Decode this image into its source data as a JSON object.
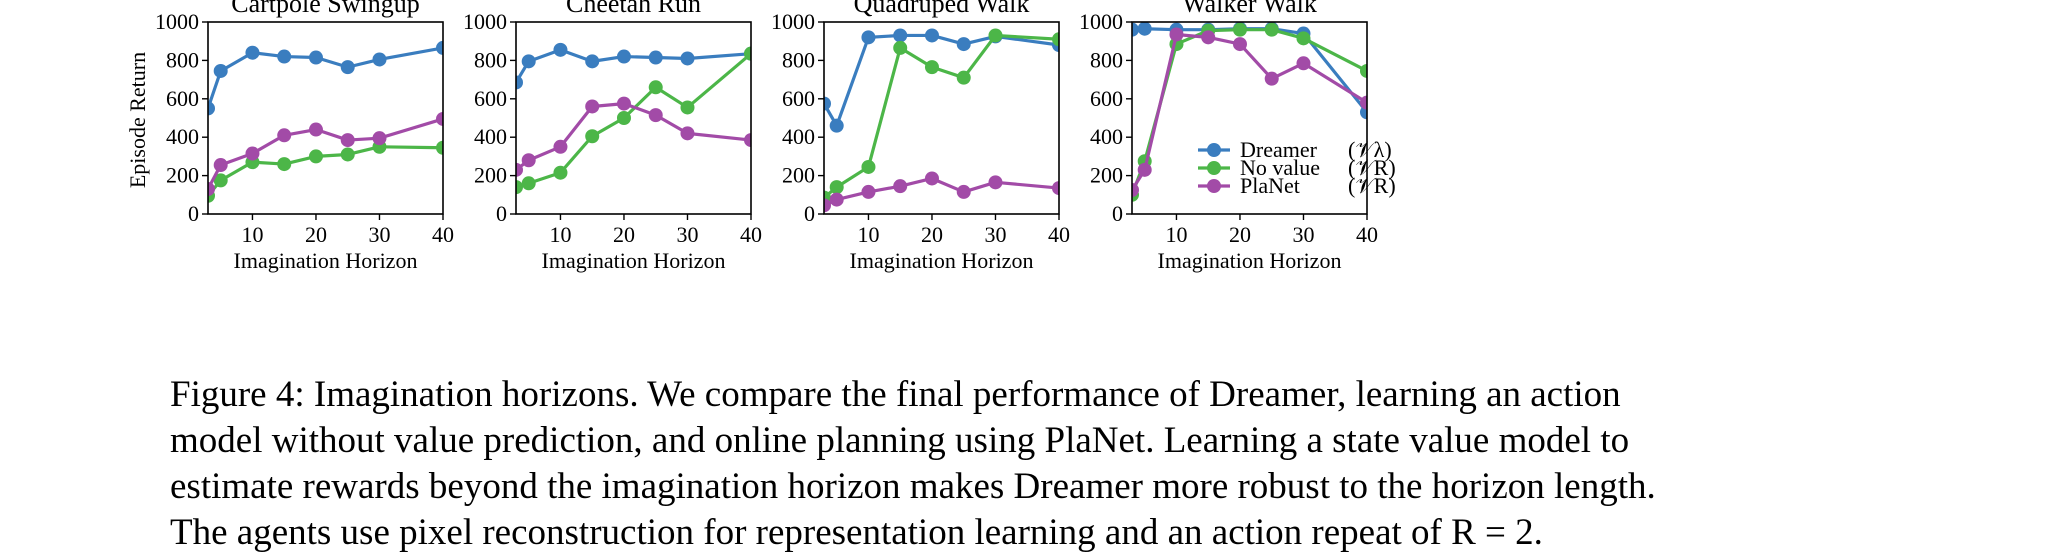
{
  "figure": {
    "series_colors": {
      "Dreamer": "#3a7dbf",
      "No value": "#4cb648",
      "PlaNet": "#a24ba7"
    },
    "legend": [
      {
        "series": "Dreamer",
        "label": "Dreamer",
        "subscript_label": "(𝒱λ)",
        "color": "#3a7dbf"
      },
      {
        "series": "No value",
        "label": "No value",
        "subscript_label": "(𝒱R)",
        "color": "#4cb648"
      },
      {
        "series": "PlaNet",
        "label": "PlaNet",
        "subscript_label": "(𝒱R)",
        "color": "#a24ba7"
      }
    ],
    "legend_placement": "lower-right of Walker Walk panel"
  },
  "chart_data": [
    {
      "type": "line",
      "title": "Cartpole Swingup",
      "xlabel": "Imagination Horizon",
      "ylabel": "Episode Return",
      "xlim": [
        3,
        40
      ],
      "ylim": [
        0,
        1000
      ],
      "xticks": [
        10,
        20,
        30,
        40
      ],
      "yticks": [
        0,
        200,
        400,
        600,
        800,
        1000
      ],
      "grid": false,
      "x": [
        3,
        5,
        10,
        15,
        20,
        25,
        30,
        40
      ],
      "series": [
        {
          "name": "Dreamer",
          "values": [
            550,
            745,
            840,
            820,
            815,
            765,
            805,
            865
          ]
        },
        {
          "name": "No value",
          "values": [
            95,
            175,
            270,
            260,
            300,
            310,
            350,
            345
          ]
        },
        {
          "name": "PlaNet",
          "values": [
            130,
            255,
            315,
            410,
            440,
            385,
            395,
            495
          ]
        }
      ]
    },
    {
      "type": "line",
      "title": "Cheetah Run",
      "xlabel": "Imagination Horizon",
      "ylabel": "",
      "xlim": [
        3,
        40
      ],
      "ylim": [
        0,
        1000
      ],
      "xticks": [
        10,
        20,
        30,
        40
      ],
      "yticks": [
        0,
        200,
        400,
        600,
        800,
        1000
      ],
      "grid": false,
      "x": [
        3,
        5,
        10,
        15,
        20,
        25,
        30,
        40
      ],
      "series": [
        {
          "name": "Dreamer",
          "values": [
            685,
            795,
            855,
            795,
            820,
            815,
            810,
            835
          ]
        },
        {
          "name": "No value",
          "values": [
            140,
            160,
            215,
            405,
            500,
            660,
            555,
            835
          ]
        },
        {
          "name": "PlaNet",
          "values": [
            230,
            280,
            350,
            560,
            575,
            515,
            420,
            385
          ]
        }
      ]
    },
    {
      "type": "line",
      "title": "Quadruped Walk",
      "xlabel": "Imagination Horizon",
      "ylabel": "",
      "xlim": [
        3,
        40
      ],
      "ylim": [
        0,
        1000
      ],
      "xticks": [
        10,
        20,
        30,
        40
      ],
      "yticks": [
        0,
        200,
        400,
        600,
        800,
        1000
      ],
      "grid": false,
      "x": [
        3,
        5,
        10,
        15,
        20,
        25,
        30,
        40
      ],
      "series": [
        {
          "name": "Dreamer",
          "values": [
            575,
            460,
            920,
            930,
            930,
            885,
            925,
            880
          ]
        },
        {
          "name": "No value",
          "values": [
            85,
            140,
            245,
            865,
            765,
            710,
            930,
            910
          ]
        },
        {
          "name": "PlaNet",
          "values": [
            45,
            75,
            115,
            145,
            185,
            115,
            165,
            135
          ]
        }
      ]
    },
    {
      "type": "line",
      "title": "Walker Walk",
      "xlabel": "Imagination Horizon",
      "ylabel": "",
      "xlim": [
        3,
        40
      ],
      "ylim": [
        0,
        1000
      ],
      "xticks": [
        10,
        20,
        30,
        40
      ],
      "yticks": [
        0,
        200,
        400,
        600,
        800,
        1000
      ],
      "grid": false,
      "x": [
        3,
        5,
        10,
        15,
        20,
        25,
        30,
        40
      ],
      "series": [
        {
          "name": "Dreamer",
          "values": [
            960,
            965,
            960,
            960,
            965,
            965,
            940,
            530
          ]
        },
        {
          "name": "No value",
          "values": [
            100,
            275,
            885,
            955,
            960,
            960,
            915,
            745
          ]
        },
        {
          "name": "PlaNet",
          "values": [
            125,
            230,
            935,
            920,
            885,
            705,
            785,
            580
          ]
        }
      ]
    }
  ],
  "caption": {
    "lines": [
      "Figure 4: Imagination horizons. We compare the final performance of Dreamer, learning an action",
      "model without value prediction, and online planning using PlaNet. Learning a state value model to",
      "estimate rewards beyond the imagination horizon makes Dreamer more robust to the horizon length.",
      "The agents use pixel reconstruction for representation learning and an action repeat of R = 2."
    ]
  }
}
